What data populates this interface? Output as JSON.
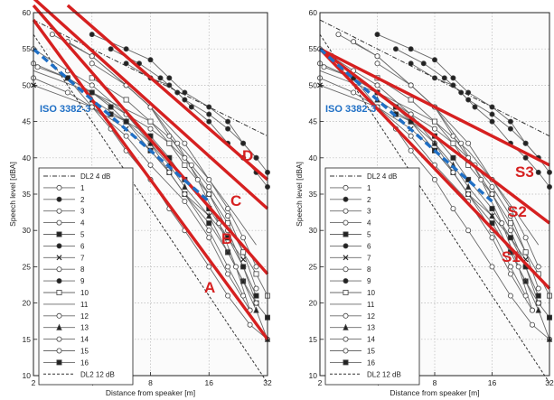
{
  "figure": {
    "ylabel": "Speech level [dBA]",
    "xlabel": "Distance from speaker [m]"
  },
  "chart_data": [
    {
      "type": "line",
      "panel": "left",
      "xlabel": "Distance from speaker [m]",
      "ylabel": "Speech level [dBA]",
      "x_scale": "log2",
      "xlim": [
        2,
        32
      ],
      "ylim": [
        10,
        60
      ],
      "x_ticks": [
        2,
        4,
        8,
        16,
        32
      ],
      "y_ticks": [
        10,
        15,
        20,
        25,
        30,
        35,
        40,
        45,
        50,
        55,
        60
      ],
      "grid": true,
      "legend": {
        "position": "bottom-left",
        "entries": [
          "DL2 4 dB",
          "1",
          "2",
          "3",
          "4",
          "5",
          "6",
          "7",
          "8",
          "9",
          "10",
          "11",
          "12",
          "13",
          "14",
          "15",
          "16",
          "DL2 12 dB"
        ]
      },
      "reference_lines": [
        {
          "name": "DL2 4 dB",
          "style": "dash-dot",
          "x": [
            2,
            32
          ],
          "y": [
            59,
            43
          ]
        },
        {
          "name": "DL2 12 dB",
          "style": "dashed",
          "x": [
            2,
            32
          ],
          "y": [
            57,
            9
          ]
        }
      ],
      "iso_line": {
        "name": "ISO 3382-3",
        "color": "#1f6fc5",
        "x": [
          2,
          16
        ],
        "y": [
          55,
          34
        ]
      },
      "red_lines": [
        {
          "name": "A",
          "x": [
            2,
            32
          ],
          "y": [
            59,
            15
          ]
        },
        {
          "name": "B",
          "x": [
            2,
            32
          ],
          "y": [
            61,
            24
          ]
        },
        {
          "name": "C",
          "x": [
            2,
            32
          ],
          "y": [
            62,
            33
          ]
        },
        {
          "name": "D",
          "x": [
            3,
            32
          ],
          "y": [
            61,
            37
          ]
        }
      ],
      "series": [
        {
          "name": "1",
          "marker": "o",
          "fill": "none",
          "x": [
            2.1,
            3,
            4,
            5,
            6,
            8,
            10,
            12,
            16,
            20,
            26,
            32
          ],
          "y": [
            52.5,
            51,
            47,
            44,
            41,
            37,
            33,
            30,
            25,
            21,
            17,
            15
          ]
        },
        {
          "name": "2",
          "marker": "o",
          "fill": "black",
          "x": [
            4,
            6,
            8,
            10,
            12,
            16,
            20,
            24,
            28
          ],
          "y": [
            57,
            55,
            53.5,
            51,
            49,
            47,
            45,
            42,
            40
          ]
        },
        {
          "name": "3",
          "marker": "o",
          "fill": "none",
          "x": [
            2,
            3,
            4,
            6,
            8,
            10,
            13,
            16,
            20,
            24,
            28
          ],
          "y": [
            53,
            51,
            49,
            46,
            44,
            42,
            39,
            36,
            32,
            27,
            22
          ]
        },
        {
          "name": "4",
          "marker": "o",
          "fill": "none",
          "x": [
            2.5,
            4,
            6,
            8,
            11,
            14,
            18,
            22,
            26
          ],
          "y": [
            57,
            54,
            50,
            47,
            42,
            37,
            31,
            25,
            19
          ]
        },
        {
          "name": "5",
          "marker": "s",
          "fill": "black",
          "x": [
            3,
            4,
            5,
            6,
            8,
            10,
            12,
            16,
            20,
            24,
            28,
            32
          ],
          "y": [
            51,
            49,
            47,
            45,
            41,
            38,
            35,
            31,
            27,
            23,
            20,
            18
          ]
        },
        {
          "name": "6",
          "marker": "o",
          "fill": "black",
          "x": [
            5,
            7,
            9,
            11,
            13,
            16,
            20,
            24,
            28,
            32
          ],
          "y": [
            55,
            53,
            51,
            49,
            47,
            45,
            42,
            40,
            38,
            36
          ]
        },
        {
          "name": "7",
          "marker": "x",
          "fill": "black",
          "x": [
            2,
            4,
            6,
            8,
            10,
            12,
            16,
            20,
            24
          ],
          "y": [
            50,
            47,
            44,
            41,
            38,
            35,
            32,
            29,
            26
          ]
        },
        {
          "name": "8",
          "marker": "o",
          "fill": "none",
          "x": [
            3,
            4,
            6,
            8,
            12,
            16,
            20,
            24,
            28
          ],
          "y": [
            56,
            54,
            50,
            47,
            42,
            37,
            33,
            29,
            25
          ]
        },
        {
          "name": "9",
          "marker": "o",
          "fill": "black",
          "x": [
            6,
            8,
            10,
            12,
            16,
            20,
            24,
            28,
            32
          ],
          "y": [
            53,
            51,
            50,
            48,
            46,
            44,
            42,
            40,
            38
          ]
        },
        {
          "name": "10",
          "marker": "s",
          "fill": "none",
          "x": [
            4,
            6,
            8,
            10,
            12,
            16,
            20,
            24,
            28,
            32
          ],
          "y": [
            51,
            48,
            45,
            42,
            39,
            35,
            31,
            27,
            24,
            21
          ]
        },
        {
          "name": "11",
          "marker": "none",
          "fill": "none",
          "x": [
            2,
            4,
            8,
            12,
            16,
            22,
            28
          ],
          "y": [
            52,
            49,
            45,
            41,
            37,
            32,
            28
          ]
        },
        {
          "name": "12",
          "marker": "o",
          "fill": "none",
          "x": [
            2,
            3,
            4,
            6,
            8,
            10,
            12,
            16,
            20,
            24
          ],
          "y": [
            55,
            52,
            50,
            46,
            42,
            38,
            35,
            30,
            25,
            21
          ]
        },
        {
          "name": "13",
          "marker": "^",
          "fill": "black",
          "x": [
            4,
            6,
            8,
            10,
            12,
            16,
            20,
            24,
            28,
            32
          ],
          "y": [
            48,
            45,
            42,
            39,
            36,
            32,
            27,
            23,
            19,
            15
          ]
        },
        {
          "name": "14",
          "marker": "o",
          "fill": "none",
          "x": [
            2,
            3,
            4,
            6,
            8,
            12,
            16,
            20,
            26
          ],
          "y": [
            51,
            49,
            47,
            43,
            39,
            34,
            29,
            24,
            19
          ]
        },
        {
          "name": "15",
          "marker": "o",
          "fill": "none",
          "x": [
            4,
            6,
            8,
            10,
            12,
            16,
            20,
            24,
            28
          ],
          "y": [
            53,
            50,
            47,
            43,
            40,
            35,
            30,
            25,
            20
          ]
        },
        {
          "name": "16",
          "marker": "s",
          "fill": "black",
          "x": [
            5,
            6,
            8,
            10,
            12,
            16,
            20,
            24,
            28
          ],
          "y": [
            46,
            45,
            43,
            40,
            37,
            33,
            29,
            25,
            21
          ]
        }
      ]
    },
    {
      "type": "line",
      "panel": "right",
      "xlabel": "Distance from speaker [m]",
      "ylabel": "Speech level [dBA]",
      "x_scale": "log2",
      "xlim": [
        2,
        32
      ],
      "ylim": [
        10,
        60
      ],
      "x_ticks": [
        2,
        4,
        8,
        16,
        32
      ],
      "y_ticks": [
        10,
        15,
        20,
        25,
        30,
        35,
        40,
        45,
        50,
        55,
        60
      ],
      "grid": true,
      "legend": {
        "position": "bottom-left",
        "entries": [
          "DL2 4 dB",
          "1",
          "2",
          "3",
          "4",
          "5",
          "6",
          "7",
          "8",
          "9",
          "10",
          "11",
          "12",
          "13",
          "14",
          "15",
          "16",
          "DL2 12 dB"
        ]
      },
      "reference_lines": [
        {
          "name": "DL2 4 dB",
          "style": "dash-dot",
          "x": [
            2,
            32
          ],
          "y": [
            59,
            43
          ]
        },
        {
          "name": "DL2 12 dB",
          "style": "dashed",
          "x": [
            2,
            32
          ],
          "y": [
            57,
            9
          ]
        }
      ],
      "iso_line": {
        "name": "ISO 3382-3",
        "color": "#1f6fc5",
        "x": [
          2,
          16
        ],
        "y": [
          55,
          34
        ]
      },
      "red_lines": [
        {
          "name": "S1",
          "x": [
            2,
            32
          ],
          "y": [
            55,
            22
          ]
        },
        {
          "name": "S2",
          "x": [
            2,
            32
          ],
          "y": [
            55,
            31
          ]
        },
        {
          "name": "S3",
          "x": [
            2,
            32
          ],
          "y": [
            55,
            39
          ]
        }
      ],
      "series": [
        {
          "name": "1",
          "marker": "o",
          "fill": "none",
          "x": [
            2.1,
            3,
            4,
            5,
            6,
            8,
            10,
            12,
            16,
            20,
            26,
            32
          ],
          "y": [
            52.5,
            51,
            47,
            44,
            41,
            37,
            33,
            30,
            25,
            21,
            17,
            15
          ]
        },
        {
          "name": "2",
          "marker": "o",
          "fill": "black",
          "x": [
            4,
            6,
            8,
            10,
            12,
            16,
            20,
            24,
            28
          ],
          "y": [
            57,
            55,
            53.5,
            51,
            49,
            47,
            45,
            42,
            40
          ]
        },
        {
          "name": "3",
          "marker": "o",
          "fill": "none",
          "x": [
            2,
            3,
            4,
            6,
            8,
            10,
            13,
            16,
            20,
            24,
            28
          ],
          "y": [
            53,
            51,
            49,
            46,
            44,
            42,
            39,
            36,
            32,
            27,
            22
          ]
        },
        {
          "name": "4",
          "marker": "o",
          "fill": "none",
          "x": [
            2.5,
            4,
            6,
            8,
            11,
            14,
            18,
            22,
            26
          ],
          "y": [
            57,
            54,
            50,
            47,
            42,
            37,
            31,
            25,
            19
          ]
        },
        {
          "name": "5",
          "marker": "s",
          "fill": "black",
          "x": [
            3,
            4,
            5,
            6,
            8,
            10,
            12,
            16,
            20,
            24,
            28,
            32
          ],
          "y": [
            51,
            49,
            47,
            45,
            41,
            38,
            35,
            31,
            27,
            23,
            20,
            18
          ]
        },
        {
          "name": "6",
          "marker": "o",
          "fill": "black",
          "x": [
            5,
            7,
            9,
            11,
            13,
            16,
            20,
            24,
            28,
            32
          ],
          "y": [
            55,
            53,
            51,
            49,
            47,
            45,
            42,
            40,
            38,
            36
          ]
        },
        {
          "name": "7",
          "marker": "x",
          "fill": "black",
          "x": [
            2,
            4,
            6,
            8,
            10,
            12,
            16,
            20,
            24
          ],
          "y": [
            50,
            47,
            44,
            41,
            38,
            35,
            32,
            29,
            26
          ]
        },
        {
          "name": "8",
          "marker": "o",
          "fill": "none",
          "x": [
            3,
            4,
            6,
            8,
            12,
            16,
            20,
            24,
            28
          ],
          "y": [
            56,
            54,
            50,
            47,
            42,
            37,
            33,
            29,
            25
          ]
        },
        {
          "name": "9",
          "marker": "o",
          "fill": "black",
          "x": [
            6,
            8,
            10,
            12,
            16,
            20,
            24,
            28,
            32
          ],
          "y": [
            53,
            51,
            50,
            48,
            46,
            44,
            42,
            40,
            38
          ]
        },
        {
          "name": "10",
          "marker": "s",
          "fill": "none",
          "x": [
            4,
            6,
            8,
            10,
            12,
            16,
            20,
            24,
            28,
            32
          ],
          "y": [
            51,
            48,
            45,
            42,
            39,
            35,
            31,
            27,
            24,
            21
          ]
        },
        {
          "name": "11",
          "marker": "none",
          "fill": "none",
          "x": [
            2,
            4,
            8,
            12,
            16,
            22,
            28
          ],
          "y": [
            52,
            49,
            45,
            41,
            37,
            32,
            28
          ]
        },
        {
          "name": "12",
          "marker": "o",
          "fill": "none",
          "x": [
            2,
            3,
            4,
            6,
            8,
            10,
            12,
            16,
            20,
            24
          ],
          "y": [
            55,
            52,
            50,
            46,
            42,
            38,
            35,
            30,
            25,
            21
          ]
        },
        {
          "name": "13",
          "marker": "^",
          "fill": "black",
          "x": [
            4,
            6,
            8,
            10,
            12,
            16,
            20,
            24,
            28,
            32
          ],
          "y": [
            48,
            45,
            42,
            39,
            36,
            32,
            27,
            23,
            19,
            15
          ]
        },
        {
          "name": "14",
          "marker": "o",
          "fill": "none",
          "x": [
            2,
            3,
            4,
            6,
            8,
            12,
            16,
            20,
            26
          ],
          "y": [
            51,
            49,
            47,
            43,
            39,
            34,
            29,
            24,
            19
          ]
        },
        {
          "name": "15",
          "marker": "o",
          "fill": "none",
          "x": [
            4,
            6,
            8,
            10,
            12,
            16,
            20,
            24,
            28
          ],
          "y": [
            53,
            50,
            47,
            43,
            40,
            35,
            30,
            25,
            20
          ]
        },
        {
          "name": "16",
          "marker": "s",
          "fill": "black",
          "x": [
            5,
            6,
            8,
            10,
            12,
            16,
            20,
            24,
            28
          ],
          "y": [
            46,
            45,
            43,
            40,
            37,
            33,
            29,
            25,
            21
          ]
        }
      ]
    }
  ],
  "colors": {
    "red": "#d62020",
    "iso_blue": "#1f6fc5",
    "series_gray": "#6a6a6a",
    "reference": "#333333",
    "grid": "#b8b8b8"
  }
}
